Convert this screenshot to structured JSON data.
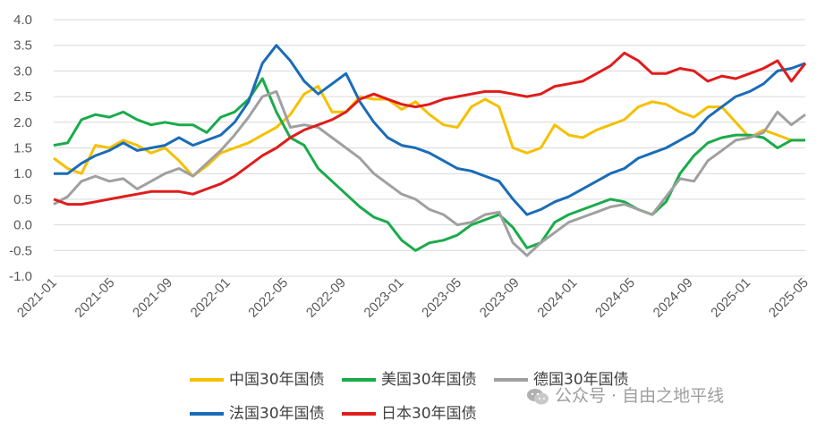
{
  "chart_data": {
    "type": "line",
    "title": "",
    "xlabel": "",
    "ylabel": "",
    "ylim": [
      -1.0,
      4.0
    ],
    "yticks": [
      "4.0",
      "3.5",
      "3.0",
      "2.5",
      "2.0",
      "1.5",
      "1.0",
      "0.5",
      "0.0",
      "-0.5",
      "-1.0"
    ],
    "xticks": [
      "2021-01",
      "2021-05",
      "2021-09",
      "2022-01",
      "2022-05",
      "2022-09",
      "2023-01",
      "2023-05",
      "2023-09",
      "2024-01",
      "2024-05",
      "2024-09",
      "2025-01",
      "2025-05"
    ],
    "grid": "horizontal",
    "legend_position": "bottom",
    "series": [
      {
        "name": "中国30年国债",
        "color": "#f5c000",
        "values": [
          1.3,
          1.1,
          1.0,
          1.55,
          1.5,
          1.65,
          1.55,
          1.4,
          1.5,
          1.25,
          0.95,
          1.15,
          1.4,
          1.5,
          1.6,
          1.75,
          1.9,
          2.15,
          2.55,
          2.7,
          2.2,
          2.2,
          2.5,
          2.45,
          2.45,
          2.25,
          2.4,
          2.15,
          1.95,
          1.9,
          2.3,
          2.45,
          2.3,
          1.5,
          1.4,
          1.5,
          1.95,
          1.75,
          1.7,
          1.85,
          1.95,
          2.05,
          2.3,
          2.4,
          2.35,
          2.2,
          2.1,
          2.3,
          2.3,
          2.0,
          1.7,
          1.85,
          1.75,
          1.65,
          1.65
        ]
      },
      {
        "name": "美国30年国债",
        "color": "#1aab4b",
        "values": [
          1.55,
          1.6,
          2.05,
          2.15,
          2.1,
          2.2,
          2.05,
          1.95,
          2.0,
          1.95,
          1.95,
          1.8,
          2.1,
          2.2,
          2.45,
          2.85,
          2.2,
          1.7,
          1.55,
          1.1,
          0.85,
          0.6,
          0.35,
          0.15,
          0.05,
          -0.3,
          -0.5,
          -0.35,
          -0.3,
          -0.2,
          0.0,
          0.1,
          0.2,
          -0.05,
          -0.45,
          -0.35,
          0.05,
          0.2,
          0.3,
          0.4,
          0.5,
          0.45,
          0.3,
          0.2,
          0.45,
          1.0,
          1.35,
          1.6,
          1.7,
          1.75,
          1.75,
          1.7,
          1.5,
          1.65,
          1.65
        ]
      },
      {
        "name": "德国30年国债",
        "color": "#a0a0a0",
        "values": [
          0.4,
          0.55,
          0.85,
          0.95,
          0.85,
          0.9,
          0.7,
          0.85,
          1.0,
          1.1,
          0.95,
          1.2,
          1.45,
          1.75,
          2.1,
          2.5,
          2.6,
          1.9,
          1.95,
          1.9,
          1.7,
          1.5,
          1.3,
          1.0,
          0.8,
          0.6,
          0.5,
          0.3,
          0.2,
          0.0,
          0.05,
          0.2,
          0.25,
          -0.35,
          -0.6,
          -0.35,
          -0.15,
          0.05,
          0.15,
          0.25,
          0.35,
          0.4,
          0.3,
          0.2,
          0.55,
          0.9,
          0.85,
          1.25,
          1.45,
          1.65,
          1.7,
          1.8,
          2.2,
          1.95,
          2.15
        ]
      },
      {
        "name": "法国30年国债",
        "color": "#1a6cb8",
        "values": [
          1.0,
          1.0,
          1.2,
          1.35,
          1.45,
          1.6,
          1.45,
          1.5,
          1.55,
          1.7,
          1.55,
          1.65,
          1.75,
          2.0,
          2.4,
          3.15,
          3.5,
          3.2,
          2.8,
          2.55,
          2.75,
          2.95,
          2.4,
          2.0,
          1.7,
          1.55,
          1.5,
          1.4,
          1.25,
          1.1,
          1.05,
          0.95,
          0.85,
          0.5,
          0.2,
          0.3,
          0.45,
          0.55,
          0.7,
          0.85,
          1.0,
          1.1,
          1.3,
          1.4,
          1.5,
          1.65,
          1.8,
          2.1,
          2.3,
          2.5,
          2.6,
          2.75,
          3.0,
          3.05,
          3.15
        ]
      },
      {
        "name": "日本30年国债",
        "color": "#e01c1c",
        "values": [
          0.5,
          0.4,
          0.4,
          0.45,
          0.5,
          0.55,
          0.6,
          0.65,
          0.65,
          0.65,
          0.6,
          0.7,
          0.8,
          0.95,
          1.15,
          1.35,
          1.5,
          1.7,
          1.85,
          1.95,
          2.05,
          2.2,
          2.45,
          2.55,
          2.45,
          2.35,
          2.3,
          2.35,
          2.45,
          2.5,
          2.55,
          2.6,
          2.6,
          2.55,
          2.5,
          2.55,
          2.7,
          2.75,
          2.8,
          2.95,
          3.1,
          3.35,
          3.2,
          2.95,
          2.95,
          3.05,
          3.0,
          2.8,
          2.9,
          2.85,
          2.95,
          3.05,
          3.2,
          2.8,
          3.15
        ]
      }
    ]
  },
  "watermark": {
    "text": "公众号 · 自由之地平线",
    "icon": "wechat-icon"
  }
}
